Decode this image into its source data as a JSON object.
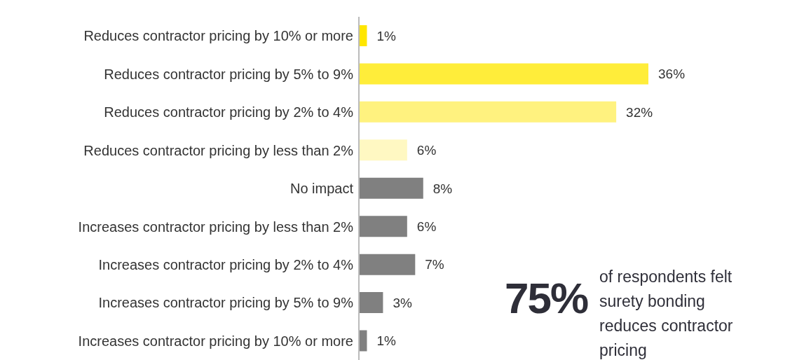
{
  "chart_data": {
    "type": "bar",
    "orientation": "horizontal",
    "categories": [
      "Reduces contractor pricing by 10% or more",
      "Reduces contractor pricing by 5% to 9%",
      "Reduces contractor pricing by 2% to 4%",
      "Reduces contractor pricing by less than 2%",
      "No impact",
      "Increases contractor pricing by less than 2%",
      "Increases contractor pricing by 2% to 4%",
      "Increases contractor pricing by 5% to 9%",
      "Increases contractor pricing by 10% or more"
    ],
    "values": [
      1,
      36,
      32,
      6,
      8,
      6,
      7,
      3,
      1
    ],
    "value_labels": [
      "1%",
      "36%",
      "32%",
      "6%",
      "8%",
      "6%",
      "7%",
      "3%",
      "1%"
    ],
    "colors": [
      "#ffe600",
      "#ffed3a",
      "#fff27f",
      "#fff8c2",
      "#808080",
      "#808080",
      "#808080",
      "#808080",
      "#808080"
    ],
    "annotations": [
      "75%",
      "of respondents felt surety bonding reduces contractor pricing"
    ],
    "grid": false,
    "legend": false
  }
}
